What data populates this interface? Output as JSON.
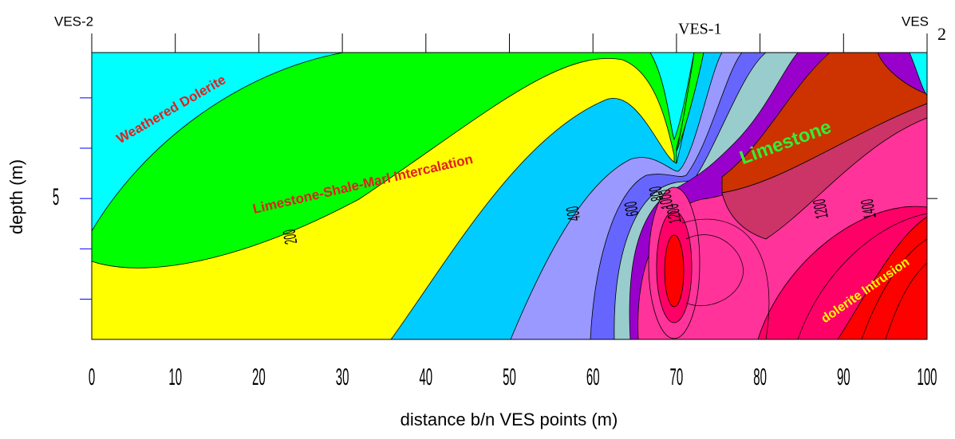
{
  "chart_data": {
    "type": "contour",
    "top_labels": [
      "VES-2",
      "VES-1",
      "VES",
      "2"
    ],
    "x_label": "distance b/n VES points (m)",
    "y_label": "depth (m)",
    "xlim": [
      0,
      100
    ],
    "xticks": [
      0,
      10,
      20,
      30,
      40,
      50,
      60,
      70,
      80,
      90,
      100
    ],
    "ylim": [
      2.1,
      7.8
    ],
    "yticks": [
      5
    ],
    "yminorticks": [
      3,
      4,
      6,
      7
    ],
    "y_inverted": true,
    "annotations": [
      "Weathered Dolerite",
      "Limestone-Shale-Marl Intercalation",
      "Limestone",
      "dolerite Intrusion"
    ],
    "contour_labels": [
      200,
      400,
      600,
      800,
      1000,
      1200,
      1200,
      1400
    ]
  }
}
